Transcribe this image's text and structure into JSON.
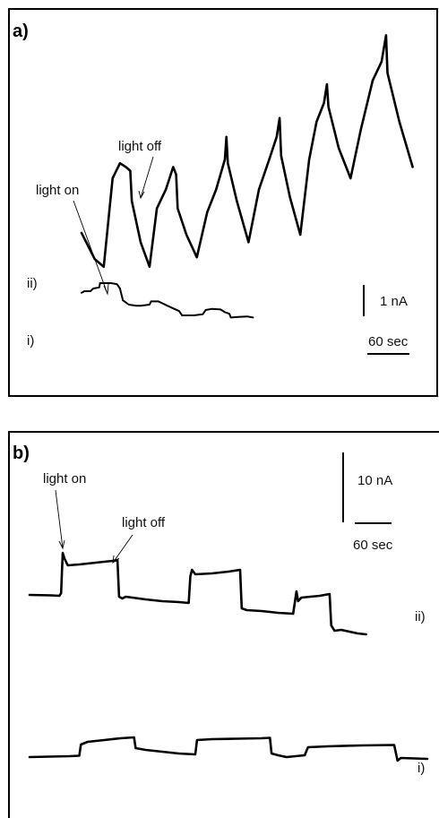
{
  "chart_data": [
    {
      "type": "line",
      "panel_label": "a)",
      "annotations": {
        "on": "light on",
        "off": "light off"
      },
      "scale_bars": {
        "vertical": "1 nA",
        "horizontal": "60 sec"
      },
      "series": [
        {
          "name": "ii)",
          "points": [
            [
              0,
              1.05
            ],
            [
              9,
              0.35
            ],
            [
              15,
              0.15
            ],
            [
              21,
              2.5
            ],
            [
              26,
              2.9
            ],
            [
              30,
              2.8
            ],
            [
              33,
              2.7
            ],
            [
              34,
              1.9
            ],
            [
              40,
              0.8
            ],
            [
              46,
              0.15
            ],
            [
              51,
              1.7
            ],
            [
              57,
              2.2
            ],
            [
              62,
              2.8
            ],
            [
              64,
              2.6
            ],
            [
              65,
              1.7
            ],
            [
              71,
              1.0
            ],
            [
              78,
              0.4
            ],
            [
              85,
              1.6
            ],
            [
              91,
              2.2
            ],
            [
              97,
              3.0
            ],
            [
              98,
              3.6
            ],
            [
              99,
              2.9
            ],
            [
              105,
              1.9
            ],
            [
              113,
              0.8
            ],
            [
              120,
              2.2
            ],
            [
              127,
              3.0
            ],
            [
              132,
              3.6
            ],
            [
              134,
              4.1
            ],
            [
              135,
              3.1
            ],
            [
              141,
              2.0
            ],
            [
              148,
              1.0
            ],
            [
              154,
              3.0
            ],
            [
              159,
              4.0
            ],
            [
              164,
              4.5
            ],
            [
              166,
              5.0
            ],
            [
              167,
              4.4
            ],
            [
              174,
              3.3
            ],
            [
              182,
              2.5
            ],
            [
              189,
              3.8
            ],
            [
              197,
              5.1
            ],
            [
              203,
              5.6
            ],
            [
              206,
              6.3
            ],
            [
              207,
              5.3
            ],
            [
              215,
              4.0
            ],
            [
              224,
              2.8
            ]
          ]
        },
        {
          "name": "i)",
          "points": [
            [
              0,
              1.02
            ],
            [
              2,
              1.05
            ],
            [
              6,
              1.05
            ],
            [
              8,
              1.1
            ],
            [
              12,
              1.12
            ],
            [
              12.5,
              1.2
            ],
            [
              20,
              1.2
            ],
            [
              24,
              1.18
            ],
            [
              26,
              1.1
            ],
            [
              28,
              0.88
            ],
            [
              32,
              0.8
            ],
            [
              37,
              0.78
            ],
            [
              40,
              0.78
            ],
            [
              46,
              0.8
            ],
            [
              47,
              0.86
            ],
            [
              52,
              0.86
            ],
            [
              58,
              0.78
            ],
            [
              66,
              0.68
            ],
            [
              68,
              0.6
            ],
            [
              76,
              0.6
            ],
            [
              82,
              0.62
            ],
            [
              84,
              0.7
            ],
            [
              88,
              0.72
            ],
            [
              94,
              0.71
            ],
            [
              97,
              0.66
            ],
            [
              100,
              0.63
            ],
            [
              101,
              0.56
            ],
            [
              106,
              0.57
            ],
            [
              112,
              0.58
            ],
            [
              116,
              0.56
            ]
          ]
        }
      ]
    },
    {
      "type": "line",
      "panel_label": "b)",
      "annotations": {
        "on": "light on",
        "off": "light off"
      },
      "scale_bars": {
        "vertical": "10 nA",
        "horizontal": "60 sec"
      },
      "series": [
        {
          "name": "ii)",
          "points": [
            [
              0,
              4.7
            ],
            [
              13,
              4.65
            ],
            [
              18,
              4.6
            ],
            [
              19,
              4.9
            ],
            [
              20,
              9.4
            ],
            [
              21,
              8.8
            ],
            [
              23,
              8.0
            ],
            [
              30,
              8.1
            ],
            [
              40,
              8.3
            ],
            [
              50,
              8.5
            ],
            [
              53,
              8.6
            ],
            [
              54,
              4.5
            ],
            [
              56,
              4.3
            ],
            [
              58,
              4.5
            ],
            [
              70,
              4.2
            ],
            [
              80,
              4.0
            ],
            [
              90,
              3.9
            ],
            [
              96,
              3.8
            ],
            [
              97,
              6.8
            ],
            [
              98,
              7.5
            ],
            [
              100,
              7.0
            ],
            [
              110,
              7.1
            ],
            [
              120,
              7.3
            ],
            [
              127,
              7.5
            ],
            [
              128,
              3.2
            ],
            [
              131,
              3.0
            ],
            [
              140,
              2.9
            ],
            [
              150,
              2.7
            ],
            [
              159,
              2.6
            ],
            [
              160,
              3.8
            ],
            [
              161,
              5.1
            ],
            [
              162,
              4.0
            ],
            [
              164,
              4.4
            ],
            [
              175,
              4.6
            ],
            [
              181,
              4.8
            ],
            [
              182,
              1.3
            ],
            [
              184,
              0.7
            ],
            [
              188,
              0.8
            ],
            [
              198,
              0.4
            ],
            [
              203,
              0.3
            ]
          ]
        },
        {
          "name": "i)",
          "points": [
            [
              0,
              1.0
            ],
            [
              12,
              1.05
            ],
            [
              24,
              1.1
            ],
            [
              30,
              1.15
            ],
            [
              31,
              2.4
            ],
            [
              35,
              2.7
            ],
            [
              45,
              2.9
            ],
            [
              55,
              3.1
            ],
            [
              63,
              3.2
            ],
            [
              64,
              2.0
            ],
            [
              70,
              1.8
            ],
            [
              80,
              1.6
            ],
            [
              90,
              1.4
            ],
            [
              100,
              1.3
            ],
            [
              101,
              2.9
            ],
            [
              110,
              3.0
            ],
            [
              125,
              3.05
            ],
            [
              140,
              3.1
            ],
            [
              145,
              3.15
            ],
            [
              146,
              1.4
            ],
            [
              150,
              1.2
            ],
            [
              155,
              1.0
            ],
            [
              166,
              1.2
            ],
            [
              168,
              2.1
            ],
            [
              180,
              2.2
            ],
            [
              200,
              2.3
            ],
            [
              220,
              2.35
            ],
            [
              222,
              0.6
            ],
            [
              224,
              0.9
            ],
            [
              240,
              0.8
            ]
          ]
        }
      ]
    }
  ]
}
